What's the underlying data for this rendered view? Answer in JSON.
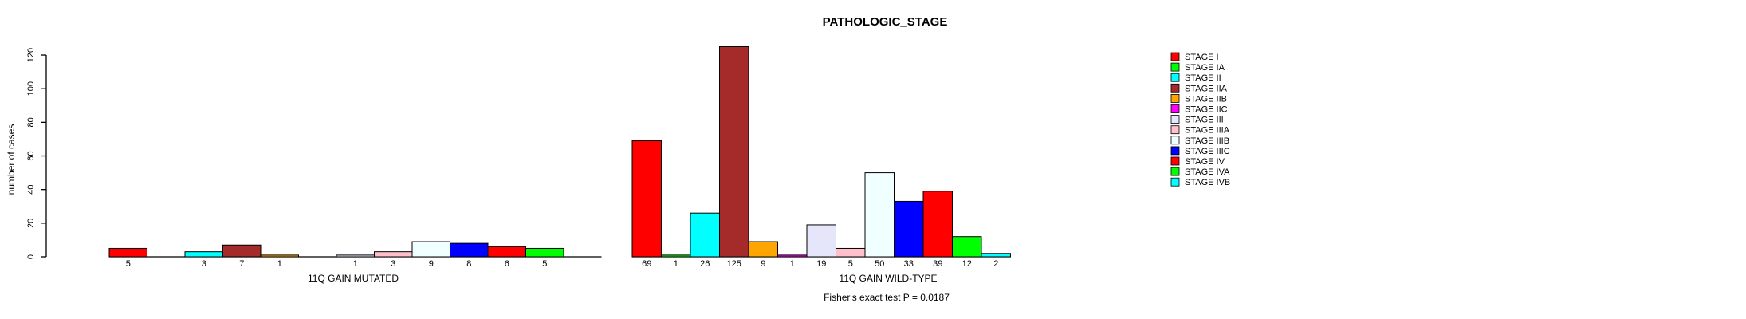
{
  "chart_data": {
    "type": "bar",
    "title": "PATHOLOGIC_STAGE",
    "ylabel": "number of cases",
    "subtitle": "Fisher's exact test P = 0.0187",
    "ylim": [
      0,
      120
    ],
    "yticks": [
      0,
      20,
      40,
      60,
      80,
      100,
      120
    ],
    "grid": false,
    "legend_position": "right",
    "axis_color": "#000000",
    "bar_border_color": "#000000",
    "background_color": "#ffffff",
    "categories": [
      "STAGE I",
      "STAGE IA",
      "STAGE II",
      "STAGE IIA",
      "STAGE IIB",
      "STAGE IIC",
      "STAGE III",
      "STAGE IIIA",
      "STAGE IIIB",
      "STAGE IIIC",
      "STAGE IV",
      "STAGE IVA",
      "STAGE IVB"
    ],
    "colors": [
      "#FF0000",
      "#00FF00",
      "#00FFFF",
      "#A52A2A",
      "#FFA500",
      "#FF00FF",
      "#E6E6FA",
      "#FFC0CB",
      "#F0FFFF",
      "#0000FF",
      "#FF0000",
      "#00FF00",
      "#00FFFF"
    ],
    "series": [
      {
        "name": "11Q GAIN MUTATED",
        "values": [
          5,
          0,
          3,
          7,
          1,
          0,
          1,
          3,
          9,
          8,
          6,
          5,
          0
        ]
      },
      {
        "name": "11Q GAIN WILD-TYPE",
        "values": [
          69,
          1,
          26,
          125,
          9,
          1,
          19,
          5,
          50,
          33,
          39,
          12,
          2
        ]
      }
    ],
    "groups": [
      {
        "label": "11Q GAIN MUTATED"
      },
      {
        "label": "11Q GAIN WILD-TYPE"
      }
    ]
  }
}
